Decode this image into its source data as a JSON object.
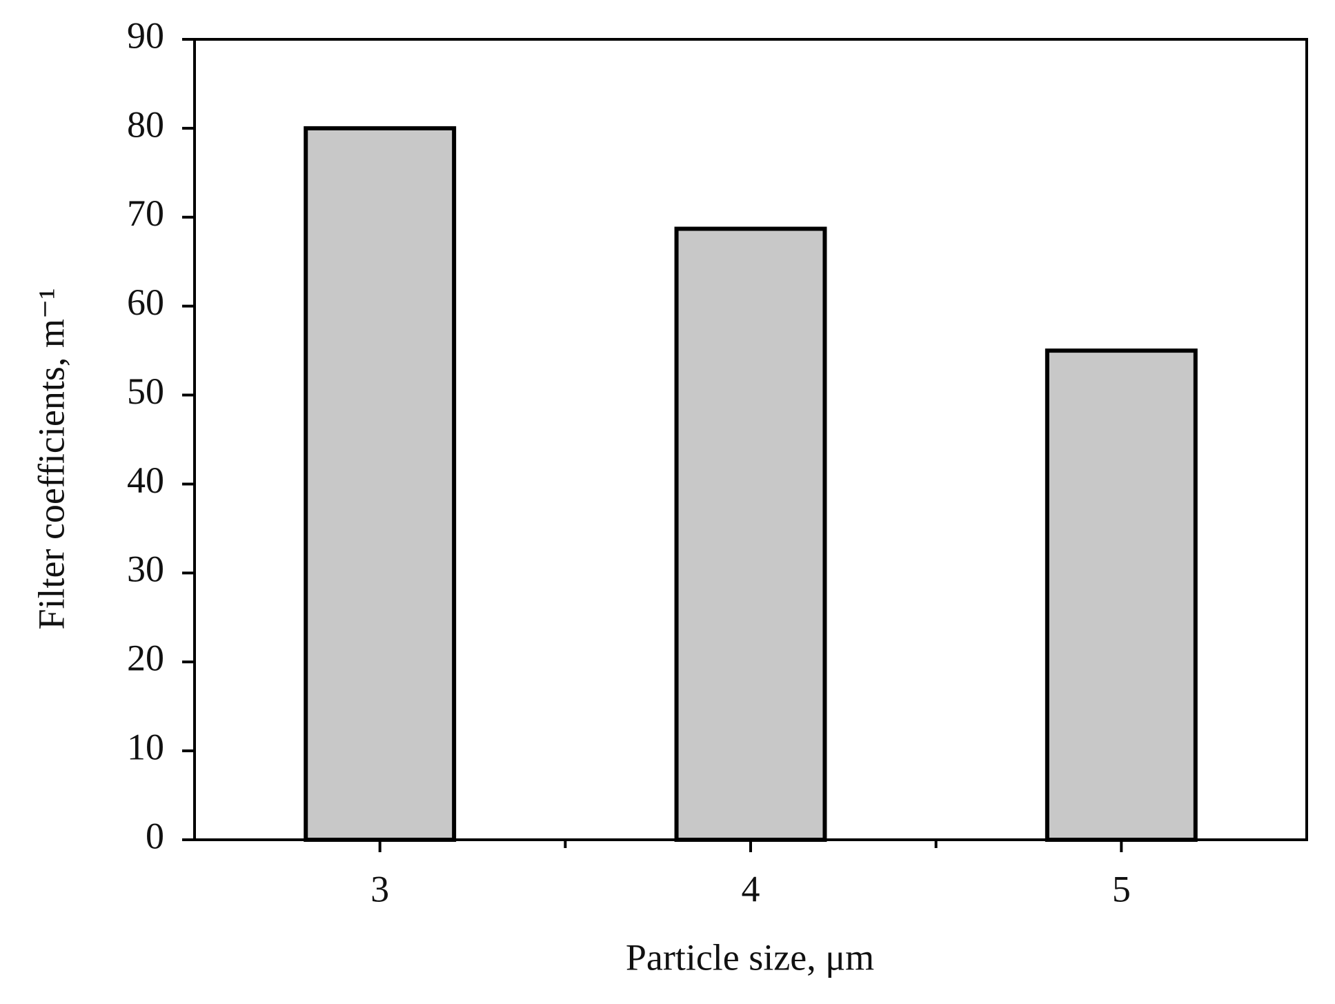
{
  "chart_data": {
    "type": "bar",
    "x_label": "Particle size, μm",
    "y_label": "Filter coefficients, m⁻¹",
    "categories": [
      "3",
      "4",
      "5"
    ],
    "values": [
      80,
      68.7,
      55
    ],
    "color": "#c8c8c8",
    "ylim": [
      0,
      90
    ],
    "yticks": [
      0,
      10,
      20,
      30,
      40,
      50,
      60,
      70,
      80,
      90
    ],
    "grid": false
  }
}
